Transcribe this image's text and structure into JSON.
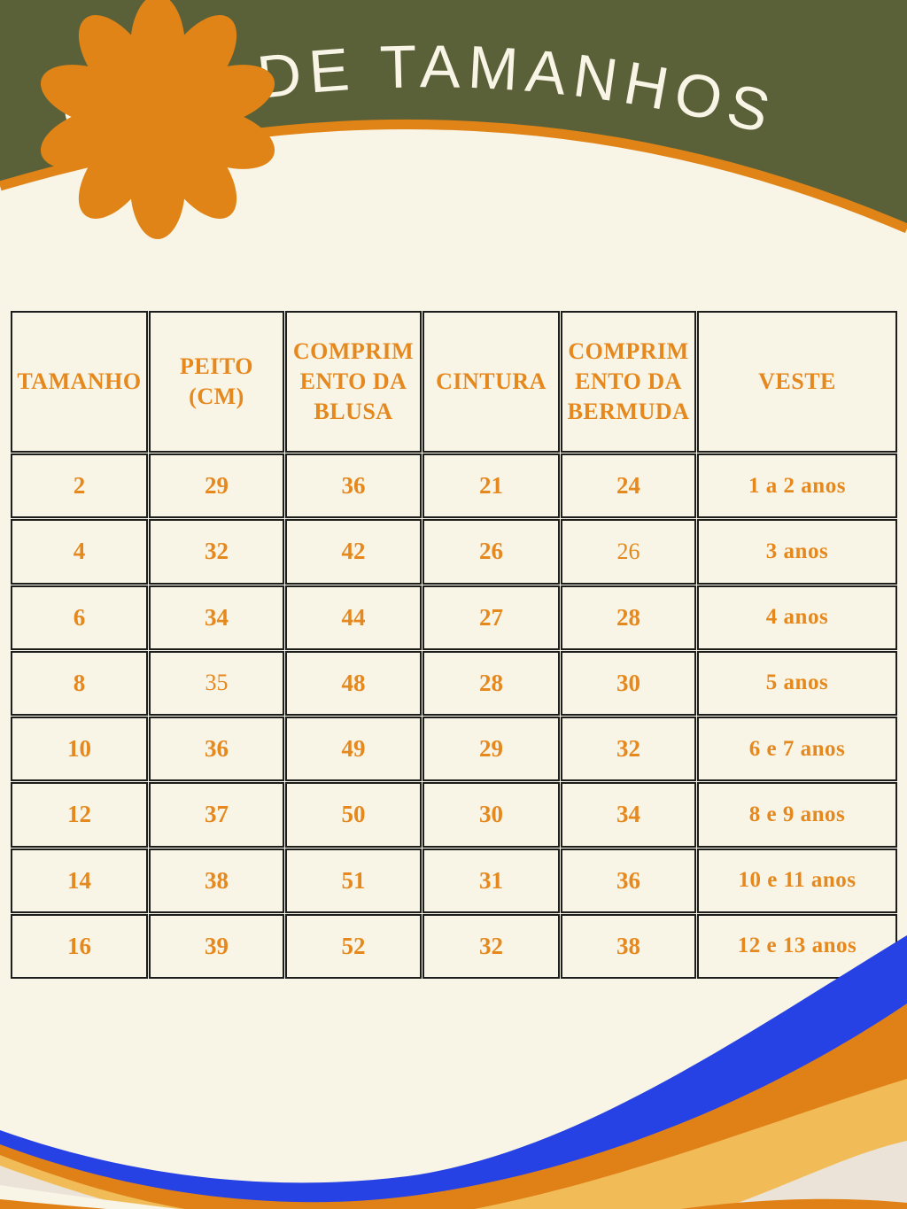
{
  "title": "GUIA DE TAMANHOS",
  "colors": {
    "green": "#5a6138",
    "cream": "#f8f4e6",
    "orange": "#e08417",
    "table_text": "#e5891f",
    "line": "#1d1d1b",
    "blue": "#2641e4",
    "dark_orange": "#e08118",
    "amber": "#f1bb57",
    "beige": "#ebe3d7"
  },
  "table": {
    "headers": [
      {
        "lines": [
          "TAMANHO"
        ]
      },
      {
        "lines": [
          "PEITO",
          "(CM)"
        ]
      },
      {
        "lines": [
          "COMPRIM",
          "ENTO DA",
          "BLUSA"
        ]
      },
      {
        "lines": [
          "CINTURA"
        ]
      },
      {
        "lines": [
          "COMPRIM",
          "ENTO DA",
          "BERMUDA"
        ]
      },
      {
        "lines": [
          "VESTE"
        ]
      }
    ],
    "rows": [
      [
        "2",
        "29",
        "36",
        "21",
        "24",
        "1 a 2 anos"
      ],
      [
        "4",
        "32",
        "42",
        "26",
        "26",
        "3 anos"
      ],
      [
        "6",
        "34",
        "44",
        "27",
        "28",
        "4 anos"
      ],
      [
        "8",
        "35",
        "48",
        "28",
        "30",
        "5 anos"
      ],
      [
        "10",
        "36",
        "49",
        "29",
        "32",
        "6 e 7 anos"
      ],
      [
        "12",
        "37",
        "50",
        "30",
        "34",
        "8 e 9 anos"
      ],
      [
        "14",
        "38",
        "51",
        "31",
        "36",
        "10 e 11 anos"
      ],
      [
        "16",
        "39",
        "52",
        "32",
        "38",
        "12  e 13 anos"
      ]
    ],
    "plain_cells": [
      [
        1,
        4
      ],
      [
        3,
        1
      ]
    ]
  }
}
